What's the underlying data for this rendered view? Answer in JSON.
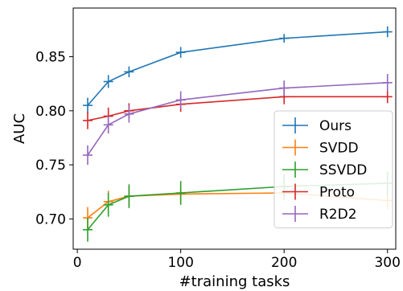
{
  "chart_data": {
    "type": "line",
    "xlabel": "#training tasks",
    "ylabel": "AUC",
    "xlim": [
      -4,
      308
    ],
    "ylim": [
      0.672,
      0.895
    ],
    "xticks": [
      0,
      100,
      200,
      300
    ],
    "yticks": [
      0.7,
      0.75,
      0.8,
      0.85
    ],
    "ytick_labels": [
      "0.70",
      "0.75",
      "0.80",
      "0.85"
    ],
    "grid": false,
    "legend_position": "lower-right",
    "x": [
      10,
      30,
      50,
      100,
      200,
      300
    ],
    "series": [
      {
        "name": "Ours",
        "color": "#1f77b4",
        "values": [
          0.805,
          0.827,
          0.836,
          0.854,
          0.867,
          0.873
        ],
        "errors": [
          0.007,
          0.006,
          0.005,
          0.005,
          0.004,
          0.005
        ]
      },
      {
        "name": "SVDD",
        "color": "#ff7f0e",
        "values": [
          0.701,
          0.716,
          0.721,
          0.723,
          0.724,
          0.717
        ],
        "errors": [
          0.01,
          0.01,
          0.009,
          0.008,
          0.007,
          0.008
        ]
      },
      {
        "name": "SSVDD",
        "color": "#2ca02c",
        "values": [
          0.69,
          0.713,
          0.721,
          0.724,
          0.73,
          0.733
        ],
        "errors": [
          0.011,
          0.011,
          0.011,
          0.011,
          0.011,
          0.011
        ]
      },
      {
        "name": "Proto",
        "color": "#d62728",
        "values": [
          0.791,
          0.795,
          0.8,
          0.806,
          0.813,
          0.813
        ],
        "errors": [
          0.008,
          0.008,
          0.007,
          0.007,
          0.007,
          0.006
        ]
      },
      {
        "name": "R2D2",
        "color": "#9467bd",
        "values": [
          0.759,
          0.787,
          0.797,
          0.81,
          0.821,
          0.826
        ],
        "errors": [
          0.009,
          0.008,
          0.008,
          0.008,
          0.007,
          0.008
        ]
      }
    ]
  }
}
